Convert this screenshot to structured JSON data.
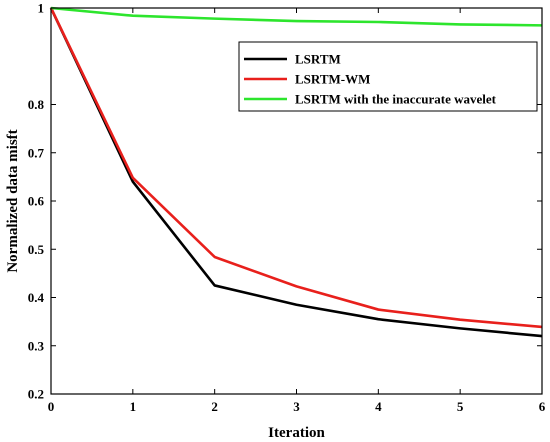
{
  "chart_data": {
    "type": "line",
    "title": "",
    "xlabel": "Iteration",
    "ylabel": "Normalized data misft",
    "x": [
      0,
      1,
      2,
      3,
      4,
      5,
      6
    ],
    "xlim": [
      0,
      6
    ],
    "ylim": [
      0.2,
      1
    ],
    "xticks": [
      "0",
      "1",
      "2",
      "3",
      "4",
      "5",
      "6"
    ],
    "yticks": [
      "0.2",
      "0.3",
      "0.4",
      "0.5",
      "0.6",
      "0.7",
      "0.8",
      "1"
    ],
    "ytick_values": [
      0.2,
      0.3,
      0.4,
      0.5,
      0.6,
      0.7,
      0.8,
      1.0
    ],
    "grid": false,
    "legend_position": "top-right",
    "series": [
      {
        "name": "LSRTM",
        "color": "#000000",
        "values": [
          1.0,
          0.64,
          0.425,
          0.385,
          0.355,
          0.336,
          0.32
        ]
      },
      {
        "name": "LSRTM-WM",
        "color": "#e8201c",
        "values": [
          1.0,
          0.648,
          0.484,
          0.423,
          0.375,
          0.354,
          0.339
        ]
      },
      {
        "name": "LSRTM with the inaccurate wavelet",
        "color": "#2de52d",
        "values": [
          1.0,
          0.984,
          0.978,
          0.973,
          0.971,
          0.966,
          0.964
        ]
      }
    ]
  }
}
